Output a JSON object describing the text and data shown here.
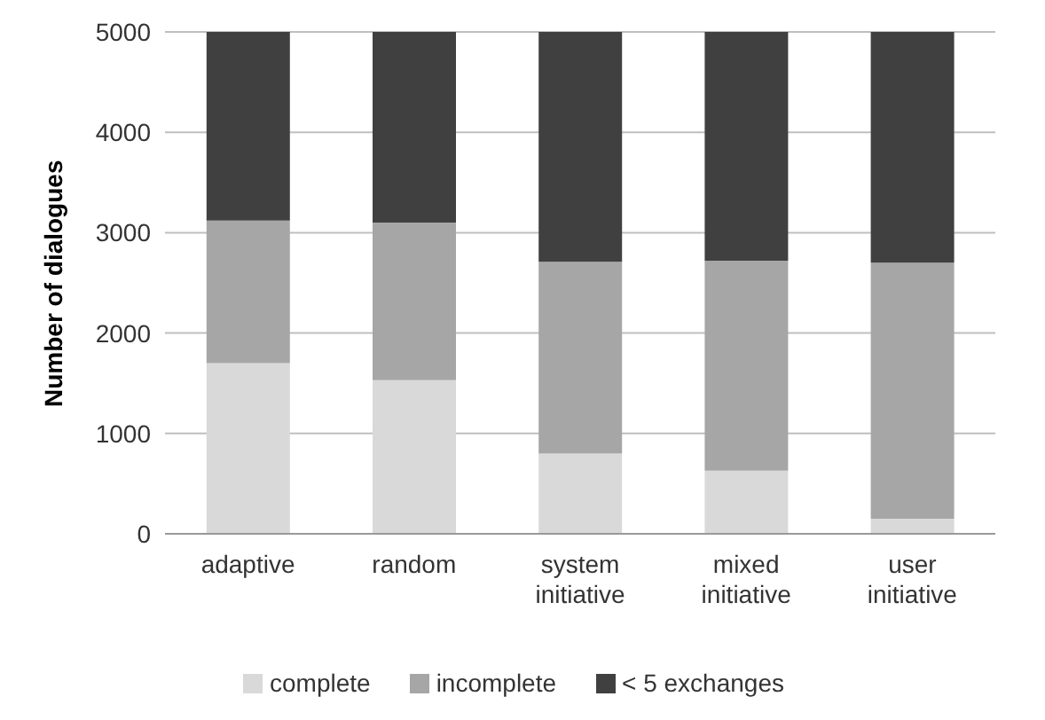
{
  "chart_data": {
    "type": "bar",
    "stacked": true,
    "ylabel": "Number of dialogues",
    "categories": [
      "adaptive",
      "random",
      "system initiative",
      "mixed initiative",
      "user initiative"
    ],
    "series": [
      {
        "name": "complete",
        "color": "#d9d9d9",
        "values": [
          1700,
          1530,
          800,
          630,
          150
        ]
      },
      {
        "name": "incomplete",
        "color": "#a6a6a6",
        "values": [
          1420,
          1570,
          1910,
          2090,
          2550
        ]
      },
      {
        "name": "< 5 exchanges",
        "color": "#404040",
        "values": [
          1880,
          1900,
          2290,
          2280,
          2300
        ]
      }
    ],
    "ylim": [
      0,
      5000
    ],
    "yticks": [
      0,
      1000,
      2000,
      3000,
      4000,
      5000
    ],
    "grid": "y",
    "legend": "bottom"
  }
}
